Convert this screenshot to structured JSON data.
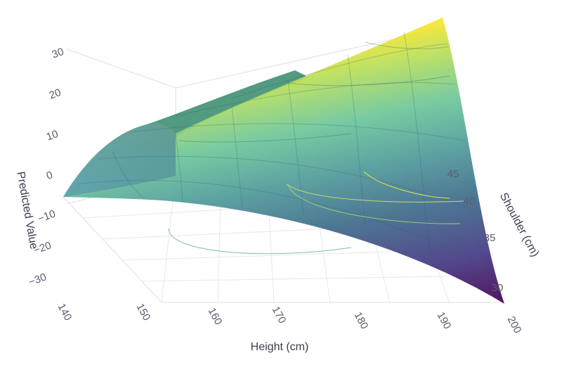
{
  "chart_data": {
    "type": "surface",
    "title": "",
    "colorscale": "viridis",
    "colors": {
      "low": "#440154",
      "mid_low": "#3b528b",
      "mid": "#21918c",
      "mid_high": "#5ec962",
      "high": "#fde725",
      "grid": "#c8ccd6",
      "tick_text": "#5a5a6e"
    },
    "x_axis": {
      "label": "Height (cm)",
      "range": [
        140,
        200
      ],
      "ticks": [
        "140",
        "150",
        "160",
        "170",
        "180",
        "190",
        "200"
      ]
    },
    "y_axis": {
      "label": "Shoulder (cm)",
      "range": [
        28,
        47
      ],
      "ticks": [
        "30",
        "35",
        "40",
        "45"
      ]
    },
    "z_axis": {
      "label": "Predicted Value",
      "range": [
        -40,
        35
      ],
      "ticks": [
        "−30",
        "−20",
        "−10",
        "0",
        "10",
        "20",
        "30"
      ]
    },
    "surface": {
      "corners": [
        {
          "height": 140,
          "shoulder": 28,
          "value": -5
        },
        {
          "height": 200,
          "shoulder": 28,
          "value": -38
        },
        {
          "height": 200,
          "shoulder": 47,
          "value": 35
        },
        {
          "height": 140,
          "shoulder": 47,
          "value": 12
        }
      ]
    },
    "contours": {
      "projected_on_floor": true,
      "levels": 4
    }
  }
}
